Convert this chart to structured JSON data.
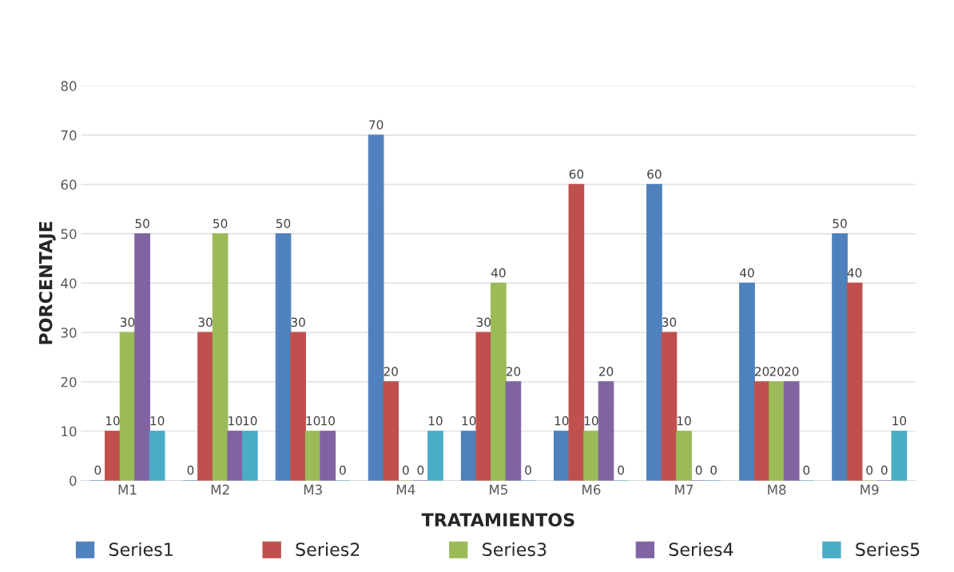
{
  "chart_data": {
    "type": "bar",
    "xlabel": "TRATAMIENTOS",
    "ylabel": "PORCENTAJE",
    "categories": [
      "M1",
      "M2",
      "M3",
      "M4",
      "M5",
      "M6",
      "M7",
      "M8",
      "M9"
    ],
    "series": [
      {
        "name": "Series1",
        "color": "#4f81bd",
        "values": [
          0,
          0,
          50,
          70,
          10,
          10,
          60,
          40,
          50
        ]
      },
      {
        "name": "Series2",
        "color": "#c0504d",
        "values": [
          10,
          30,
          30,
          20,
          30,
          60,
          30,
          20,
          40
        ]
      },
      {
        "name": "Series3",
        "color": "#9bbb59",
        "values": [
          30,
          50,
          10,
          0,
          40,
          10,
          10,
          20,
          0
        ]
      },
      {
        "name": "Series4",
        "color": "#8064a2",
        "values": [
          50,
          10,
          10,
          0,
          20,
          20,
          0,
          20,
          0
        ]
      },
      {
        "name": "Series5",
        "color": "#4bacc6",
        "values": [
          10,
          10,
          0,
          10,
          0,
          0,
          0,
          0,
          10
        ]
      }
    ],
    "ylim": [
      0,
      80
    ],
    "yticks": [
      0,
      10,
      20,
      30,
      40,
      50,
      60,
      70,
      80
    ],
    "grid": "y",
    "legend": "bottom",
    "data_labels": true
  }
}
